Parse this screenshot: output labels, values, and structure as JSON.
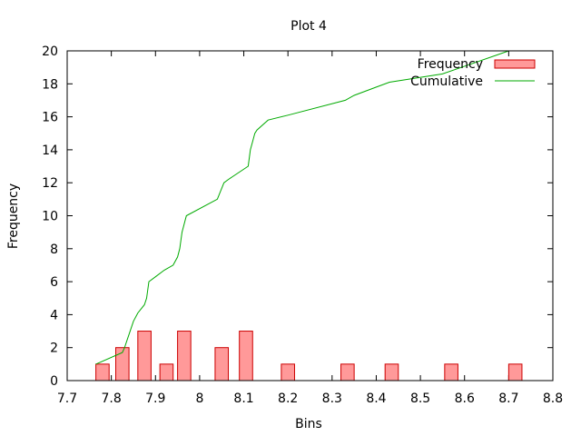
{
  "chart_data": {
    "type": "bar",
    "title": "Plot 4",
    "xlabel": "Bins",
    "ylabel": "Frequency",
    "xlim": [
      7.7,
      8.8
    ],
    "ylim": [
      0,
      20
    ],
    "x_ticks": [
      "7.7",
      "7.8",
      "7.9",
      "8",
      "8.1",
      "8.2",
      "8.3",
      "8.4",
      "8.5",
      "8.6",
      "8.7",
      "8.8"
    ],
    "y_ticks": [
      "0",
      "2",
      "4",
      "6",
      "8",
      "10",
      "12",
      "14",
      "16",
      "18",
      "20"
    ],
    "legend": {
      "position": "top-right",
      "entries": [
        "Frequency",
        "Cumulative"
      ]
    },
    "series": [
      {
        "name": "Frequency",
        "kind": "bar",
        "color": "#ff9999",
        "edge_color": "#cc0000",
        "bar_width": 0.03,
        "x": [
          7.78,
          7.825,
          7.875,
          7.925,
          7.965,
          8.05,
          8.105,
          8.2,
          8.335,
          8.435,
          8.57,
          8.715
        ],
        "values": [
          1,
          2,
          3,
          1,
          3,
          2,
          3,
          1,
          1,
          1,
          1,
          1
        ]
      },
      {
        "name": "Cumulative",
        "kind": "line",
        "color": "#00aa00",
        "x": [
          7.765,
          7.825,
          7.83,
          7.85,
          7.86,
          7.875,
          7.88,
          7.885,
          7.9,
          7.92,
          7.94,
          7.95,
          7.955,
          7.96,
          7.97,
          8.04,
          8.055,
          8.065,
          8.11,
          8.11,
          8.115,
          8.12,
          8.125,
          8.13,
          8.155,
          8.2,
          8.33,
          8.35,
          8.4,
          8.43,
          8.55,
          8.7
        ],
        "values": [
          1,
          1.7,
          2,
          3.6,
          4.1,
          4.6,
          5,
          6,
          6.3,
          6.7,
          7,
          7.5,
          8,
          9,
          10,
          11,
          12,
          12.2,
          13,
          13,
          14,
          14.5,
          15,
          15.2,
          15.8,
          16.1,
          17,
          17.3,
          17.8,
          18.1,
          18.6,
          20
        ]
      }
    ]
  }
}
